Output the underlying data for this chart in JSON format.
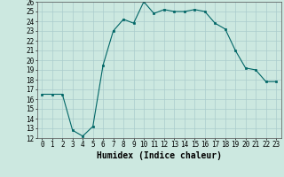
{
  "x": [
    0,
    1,
    2,
    3,
    4,
    5,
    6,
    7,
    8,
    9,
    10,
    11,
    12,
    13,
    14,
    15,
    16,
    17,
    18,
    19,
    20,
    21,
    22,
    23
  ],
  "y": [
    16.5,
    16.5,
    16.5,
    12.8,
    12.2,
    13.2,
    19.5,
    23.0,
    24.2,
    23.8,
    26.0,
    24.8,
    25.2,
    25.0,
    25.0,
    25.2,
    25.0,
    23.8,
    23.2,
    21.0,
    19.2,
    19.0,
    17.8,
    17.8
  ],
  "xlabel": "Humidex (Indice chaleur)",
  "ylim": [
    12,
    26
  ],
  "xlim": [
    -0.5,
    23.5
  ],
  "yticks": [
    12,
    13,
    14,
    15,
    16,
    17,
    18,
    19,
    20,
    21,
    22,
    23,
    24,
    25,
    26
  ],
  "xticks": [
    0,
    1,
    2,
    3,
    4,
    5,
    6,
    7,
    8,
    9,
    10,
    11,
    12,
    13,
    14,
    15,
    16,
    17,
    18,
    19,
    20,
    21,
    22,
    23
  ],
  "line_color": "#006666",
  "marker_color": "#006666",
  "bg_color": "#cce8e0",
  "grid_color": "#aacccc",
  "xlabel_fontsize": 7,
  "tick_fontsize": 5.5
}
